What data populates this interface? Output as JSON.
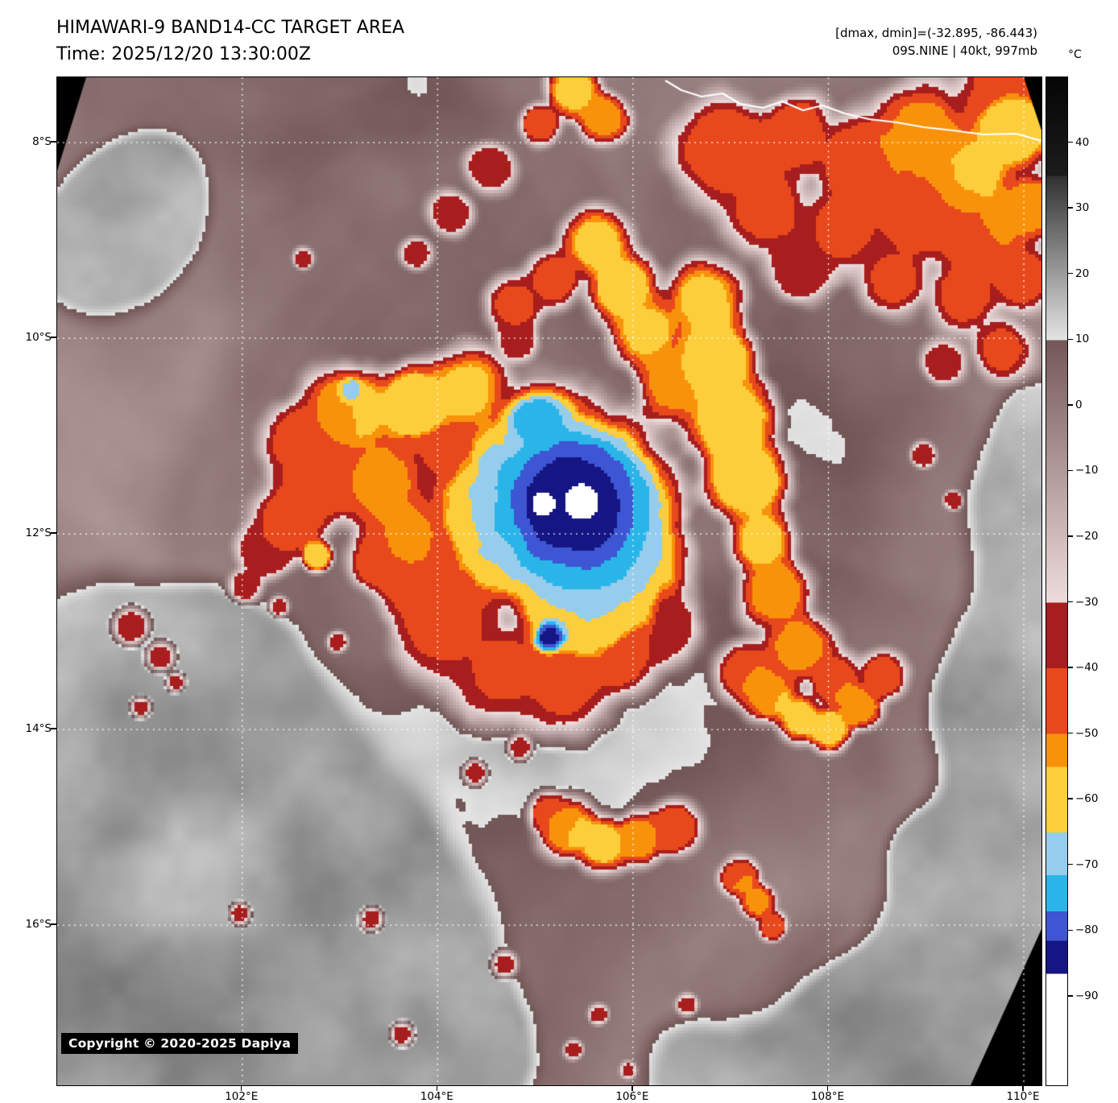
{
  "header": {
    "title": "HIMAWARI-9 BAND14-CC TARGET AREA",
    "time_line": "Time: 2025/12/20 13:30:00Z",
    "dmax_dmin": "[dmax, dmin]=(-32.895, -86.443)",
    "storm_info": "09S.NINE | 40kt, 997mb"
  },
  "copyright": "Copyright © 2020-2025 Dapiya",
  "axes": {
    "lat_range": [
      7.333,
      17.637
    ],
    "lon_range": [
      100.106,
      110.181
    ],
    "lat_ticks": [
      {
        "label": "8°S",
        "value": 8
      },
      {
        "label": "10°S",
        "value": 10
      },
      {
        "label": "12°S",
        "value": 12
      },
      {
        "label": "14°S",
        "value": 14
      },
      {
        "label": "16°S",
        "value": 16
      }
    ],
    "lon_ticks": [
      {
        "label": "102°E",
        "value": 102
      },
      {
        "label": "104°E",
        "value": 104
      },
      {
        "label": "106°E",
        "value": 106
      },
      {
        "label": "108°E",
        "value": 108
      },
      {
        "label": "110°E",
        "value": 110
      }
    ],
    "grid_color": "#ffffff"
  },
  "colorbar": {
    "unit": "°C",
    "vmax": 50,
    "vmin": -103.5,
    "ticks": [
      {
        "label": "40",
        "value": 40
      },
      {
        "label": "30",
        "value": 30
      },
      {
        "label": "20",
        "value": 20
      },
      {
        "label": "10",
        "value": 10
      },
      {
        "label": "0",
        "value": 0
      },
      {
        "label": "−10",
        "value": -10
      },
      {
        "label": "−20",
        "value": -20
      },
      {
        "label": "−30",
        "value": -30
      },
      {
        "label": "−40",
        "value": -40
      },
      {
        "label": "−50",
        "value": -50
      },
      {
        "label": "−60",
        "value": -60
      },
      {
        "label": "−70",
        "value": -70
      },
      {
        "label": "−80",
        "value": -80
      },
      {
        "label": "−90",
        "value": -90
      }
    ],
    "segments": [
      {
        "from": 50,
        "to": 35,
        "c1": "#050505",
        "c2": "#1c1c1c"
      },
      {
        "from": 35,
        "to": 10,
        "c1": "#303030",
        "c2": "#e4e4e4"
      },
      {
        "from": 10,
        "to": -30,
        "c1": "#735757",
        "c2": "#eedcdc"
      },
      {
        "from": -30,
        "to": -40,
        "c1": "#a81e1e",
        "c2": "#a81e1e"
      },
      {
        "from": -40,
        "to": -50,
        "c1": "#e8491c",
        "c2": "#e8491c"
      },
      {
        "from": -50,
        "to": -55,
        "c1": "#f9920b",
        "c2": "#f9920b"
      },
      {
        "from": -55,
        "to": -65,
        "c1": "#fcce3c",
        "c2": "#fcce3c"
      },
      {
        "from": -65,
        "to": -71.5,
        "c1": "#97cdec",
        "c2": "#97cdec"
      },
      {
        "from": -71.5,
        "to": -77,
        "c1": "#2ab5e9",
        "c2": "#2ab5e9"
      },
      {
        "from": -77,
        "to": -81.5,
        "c1": "#3e56d3",
        "c2": "#3e56d3"
      },
      {
        "from": -81.5,
        "to": -86.5,
        "c1": "#151583",
        "c2": "#151583"
      },
      {
        "from": -86.5,
        "to": -103.5,
        "c1": "#ffffff",
        "c2": "#ffffff"
      }
    ]
  },
  "map": {
    "storm_center": {
      "u": 0.51,
      "v": 0.43
    },
    "coastline_color": "#ffffff",
    "offswath_color": "#000000"
  }
}
